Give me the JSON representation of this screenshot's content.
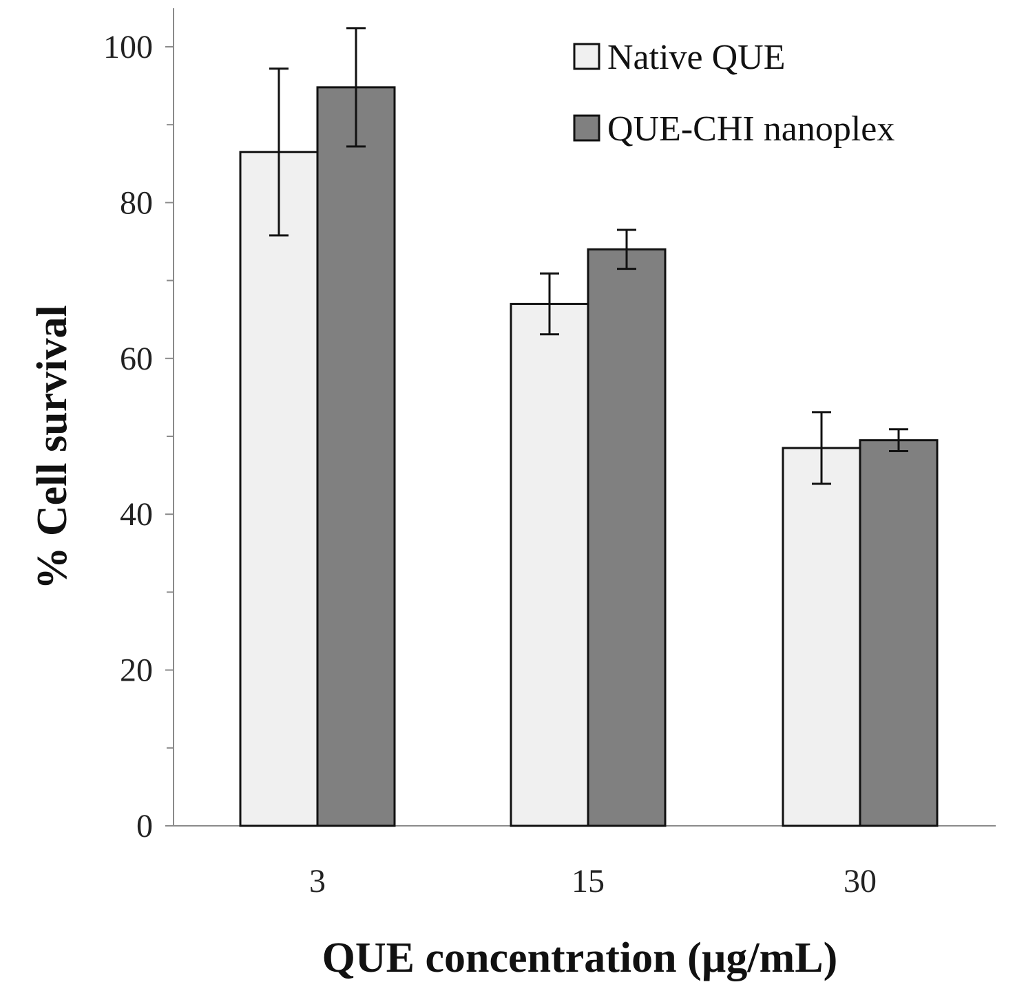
{
  "chart_data": {
    "type": "bar",
    "title": "",
    "xlabel": "QUE concentration (µg/mL)",
    "ylabel": "% Cell survival",
    "categories": [
      "3",
      "15",
      "30"
    ],
    "ylim": [
      0,
      100
    ],
    "yticks": [
      0,
      20,
      40,
      60,
      80,
      100
    ],
    "ytick_labels": [
      "0",
      "20",
      "40",
      "60",
      "80",
      "100"
    ],
    "minor_yticks": [
      10,
      30,
      50,
      70,
      90
    ],
    "grid": false,
    "legend_position": "top-right",
    "series": [
      {
        "name": "Native QUE",
        "color": "#f0f0f0",
        "values": [
          86.5,
          67.0,
          48.5
        ],
        "errors": [
          10.7,
          3.9,
          4.6
        ]
      },
      {
        "name": "QUE-CHI nanoplex",
        "color": "#808080",
        "values": [
          94.8,
          74.0,
          49.5
        ],
        "errors": [
          7.6,
          2.5,
          1.4
        ]
      }
    ]
  }
}
